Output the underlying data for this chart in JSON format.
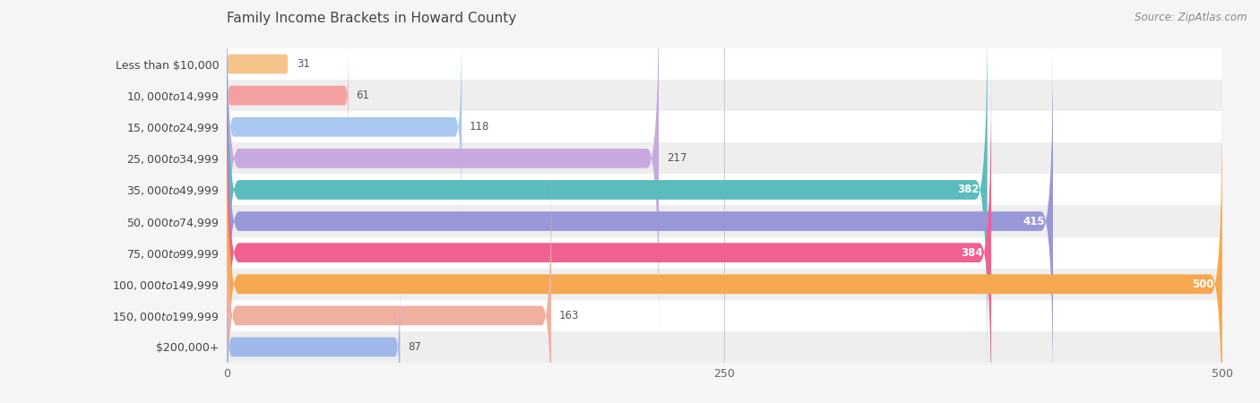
{
  "title": "Family Income Brackets in Howard County",
  "source": "Source: ZipAtlas.com",
  "categories": [
    "Less than $10,000",
    "$10,000 to $14,999",
    "$15,000 to $24,999",
    "$25,000 to $34,999",
    "$35,000 to $49,999",
    "$50,000 to $74,999",
    "$75,000 to $99,999",
    "$100,000 to $149,999",
    "$150,000 to $199,999",
    "$200,000+"
  ],
  "values": [
    31,
    61,
    118,
    217,
    382,
    415,
    384,
    500,
    163,
    87
  ],
  "bar_colors": [
    "#f5c48a",
    "#f5a0a0",
    "#a8c8f0",
    "#c8a8e0",
    "#5bbcbe",
    "#9898d8",
    "#f06090",
    "#f5a850",
    "#f0b0a0",
    "#a0b8e8"
  ],
  "xlim": [
    0,
    500
  ],
  "xticks": [
    0,
    250,
    500
  ],
  "bar_height": 0.62,
  "background_color": "#f5f5f5",
  "row_bg_colors": [
    "#ffffff",
    "#eeeeee"
  ],
  "title_fontsize": 11,
  "label_fontsize": 9,
  "value_fontsize": 8.5,
  "source_fontsize": 8.5
}
